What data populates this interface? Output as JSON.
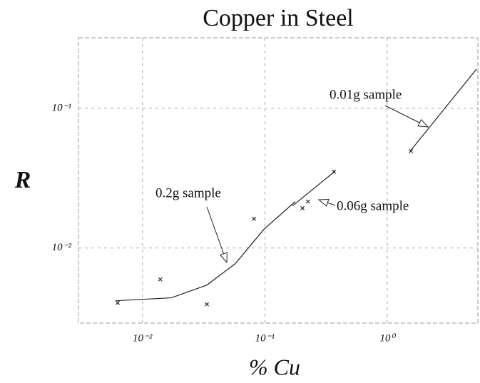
{
  "chart_data": {
    "type": "line",
    "title": "Copper in Steel",
    "xlabel": "% Cu",
    "ylabel": "R",
    "log_x": true,
    "log_y": true,
    "grid": true,
    "color": "#222222",
    "xlim": [
      0.003,
      5.5
    ],
    "ylim": [
      0.0029,
      0.32
    ],
    "xticks": [
      {
        "value": 0.01,
        "label": "10⁻²"
      },
      {
        "value": 0.1,
        "label": "10⁻¹"
      },
      {
        "value": 1,
        "label": "10⁰"
      }
    ],
    "yticks": [
      {
        "value": 0.01,
        "label": "10⁻²"
      },
      {
        "value": 0.1,
        "label": "10⁻¹"
      }
    ],
    "series": [
      {
        "name": "0.2g sample",
        "x": [
          0.00603,
          0.0172,
          0.0336,
          0.0574,
          0.0982,
          0.177
        ],
        "values": [
          0.00419,
          0.0044,
          0.00543,
          0.00773,
          0.0136,
          0.0215
        ]
      },
      {
        "name": "0.06g sample",
        "x": [
          0.168,
          0.376
        ],
        "values": [
          0.02,
          0.0356
        ]
      },
      {
        "name": "0.01g sample",
        "x": [
          1.54,
          5.36
        ],
        "values": [
          0.0494,
          0.191
        ]
      }
    ],
    "points": {
      "x": [
        0.00628,
        0.014,
        0.0336,
        0.0815,
        0.203,
        0.225,
        0.366,
        1.56
      ],
      "values": [
        0.00405,
        0.00596,
        0.00395,
        0.0162,
        0.0193,
        0.0215,
        0.0352,
        0.0494
      ]
    }
  }
}
